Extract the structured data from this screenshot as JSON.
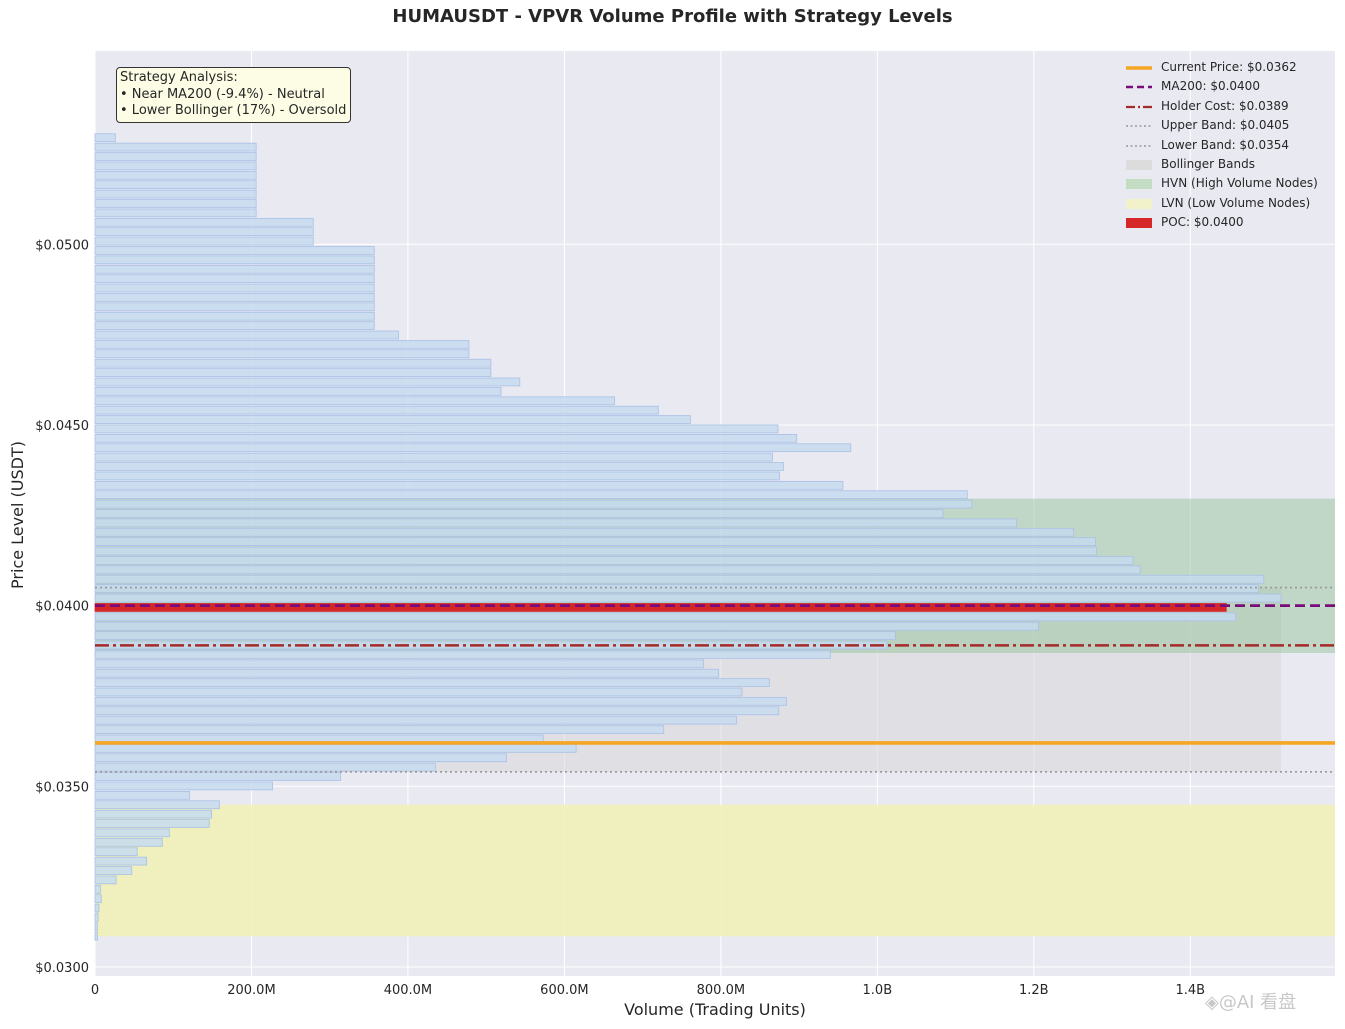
{
  "chart_data": {
    "type": "bar",
    "orientation": "horizontal",
    "title": "HUMAUSDT - VPVR Volume Profile with Strategy Levels",
    "xlabel": "Volume (Trading Units)",
    "ylabel": "Price Level (USDT)",
    "xlim": [
      0,
      1585000000
    ],
    "ylim": [
      0.02975,
      0.05535
    ],
    "x_ticks": [
      {
        "value": 0,
        "label": "0"
      },
      {
        "value": 200000000,
        "label": "200.0M"
      },
      {
        "value": 400000000,
        "label": "400.0M"
      },
      {
        "value": 600000000,
        "label": "600.0M"
      },
      {
        "value": 800000000,
        "label": "800.0M"
      },
      {
        "value": 1000000000,
        "label": "1.0B"
      },
      {
        "value": 1200000000,
        "label": "1.2B"
      },
      {
        "value": 1400000000,
        "label": "1.4B"
      }
    ],
    "y_ticks": [
      {
        "value": 0.03,
        "label": "$0.0300"
      },
      {
        "value": 0.035,
        "label": "$0.0350"
      },
      {
        "value": 0.04,
        "label": "$0.0400"
      },
      {
        "value": 0.045,
        "label": "$0.0450"
      },
      {
        "value": 0.05,
        "label": "$0.0500"
      }
    ],
    "grid": true,
    "legend_position": "top-right",
    "bin_width": 0.00026,
    "price_levels": [
      0.03085,
      0.03111,
      0.03137,
      0.03163,
      0.03189,
      0.03215,
      0.03241,
      0.03267,
      0.03293,
      0.03319,
      0.03345,
      0.03371,
      0.03397,
      0.03423,
      0.03449,
      0.03475,
      0.03501,
      0.03527,
      0.03553,
      0.03579,
      0.03605,
      0.03631,
      0.03657,
      0.03683,
      0.03709,
      0.03735,
      0.03761,
      0.03787,
      0.03813,
      0.03839,
      0.03865,
      0.03891,
      0.03917,
      0.03943,
      0.03969,
      0.03995,
      0.04021,
      0.04047,
      0.04073,
      0.04099,
      0.04125,
      0.04151,
      0.04177,
      0.04203,
      0.04229,
      0.04255,
      0.04281,
      0.04307,
      0.04333,
      0.04359,
      0.04385,
      0.04411,
      0.04437,
      0.04463,
      0.04489,
      0.04515,
      0.04541,
      0.04567,
      0.04593,
      0.04619,
      0.04645,
      0.04671,
      0.04697,
      0.04723,
      0.04749,
      0.04775,
      0.04801,
      0.04827,
      0.04853,
      0.04879,
      0.04905,
      0.04931,
      0.04957,
      0.04983,
      0.05009,
      0.05035,
      0.05061,
      0.05087,
      0.05113,
      0.05139,
      0.05165,
      0.05191,
      0.05217,
      0.05243,
      0.05269,
      0.05295
    ],
    "volumes": [
      3000000,
      3000000,
      4000000,
      5000000,
      8000000,
      7000000,
      27000000,
      47000000,
      66000000,
      54000000,
      86000000,
      95000000,
      146000000,
      149000000,
      159000000,
      121000000,
      227000000,
      314000000,
      435000000,
      526000000,
      615000000,
      573000000,
      727000000,
      820000000,
      874000000,
      884000000,
      827000000,
      862000000,
      797000000,
      778000000,
      940000000,
      1012000000,
      1023000000,
      1206000000,
      1458000000,
      1446000000,
      1516000000,
      1487000000,
      1494000000,
      1336000000,
      1327000000,
      1280000000,
      1279000000,
      1251000000,
      1178000000,
      1084000000,
      1121000000,
      1115000000,
      956000000,
      875000000,
      880000000,
      866000000,
      966000000,
      897000000,
      873000000,
      761000000,
      720000000,
      664000000,
      519000000,
      543000000,
      506000000,
      506000000,
      478000000,
      478000000,
      388000000,
      357000000,
      357000000,
      357000000,
      357000000,
      357000000,
      357000000,
      357000000,
      357000000,
      357000000,
      279000000,
      279000000,
      279000000,
      206000000,
      206000000,
      206000000,
      206000000,
      206000000,
      206000000,
      206000000,
      206000000,
      26000000
    ],
    "levels": {
      "current_price": 0.0362,
      "ma200": 0.04,
      "holder_cost": 0.0389,
      "upper_band": 0.0405,
      "lower_band": 0.0354,
      "poc": 0.04
    },
    "zones": {
      "hvn": [
        0.03869,
        0.04296
      ],
      "lvn": [
        0.03085,
        0.03449
      ],
      "bollinger": [
        0.0354,
        0.0405
      ]
    },
    "legend": [
      {
        "label": "Current Price: $0.0362",
        "style": "solid-thick",
        "color": "#f5a623"
      },
      {
        "label": "MA200: $0.0400",
        "style": "dashed",
        "color": "#7b0a7b"
      },
      {
        "label": "Holder Cost: $0.0389",
        "style": "dashdot",
        "color": "#a52a2a"
      },
      {
        "label": "Upper Band: $0.0405",
        "style": "dotted",
        "color": "#999999"
      },
      {
        "label": "Lower Band: $0.0354",
        "style": "dotted",
        "color": "#999999"
      },
      {
        "label": "Bollinger Bands",
        "style": "patch",
        "color": "#dcdcdc"
      },
      {
        "label": "HVN (High Volume Nodes)",
        "style": "patch",
        "color": "#c3dcc4"
      },
      {
        "label": "LVN (Low Volume Nodes)",
        "style": "patch",
        "color": "#f1f2c9"
      },
      {
        "label": "POC: $0.0400",
        "style": "patch",
        "color": "#d62728"
      }
    ],
    "annotation": {
      "title": "Strategy Analysis:",
      "lines": [
        "• Near MA200 (-9.4%) - Neutral",
        "• Lower Bollinger (17%) - Oversold"
      ]
    },
    "colors": {
      "plot_background": "#e9e9f1",
      "bar_fill": "#c5dbef",
      "bar_edge": "#a9c0e6",
      "current_price": "#f5a623",
      "ma200": "#7b0a7b",
      "holder_cost": "#a52a2a",
      "band": "#999999",
      "poc": "#d62728",
      "hvn": "#8fbf95",
      "lvn": "#f1efb8",
      "bollinger": "#d9d9d9"
    }
  },
  "watermark": "◈@AI 看盘"
}
